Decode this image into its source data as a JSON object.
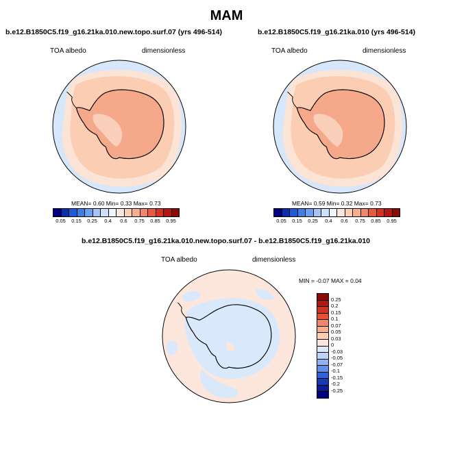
{
  "title": "MAM",
  "panels": [
    {
      "title": "b.e12.B1850C5.f19_g16.21ka.010.new.topo.surf.07 (yrs 496-514)",
      "left_label": "TOA albedo",
      "right_label": "dimensionless",
      "stats": "MEAN=  0.60  Min=  0.33  Max=  0.73"
    },
    {
      "title": "b.e12.B1850C5.f19_g16.21ka.010 (yrs 496-514)",
      "left_label": "TOA albedo",
      "right_label": "dimensionless",
      "stats": "MEAN=  0.59  Min=  0.32  Max=  0.73"
    }
  ],
  "colorbar_top": {
    "labels": [
      "0.05",
      "0.15",
      "0.25",
      "0.4",
      "0.6",
      "0.75",
      "0.85",
      "0.95"
    ],
    "colors": [
      "#00007f",
      "#0a2fa8",
      "#1c5ad6",
      "#3a7ee6",
      "#6aa0f0",
      "#a3c4f5",
      "#cfe0fa",
      "#eef5fd",
      "#fde6dc",
      "#fbcfb6",
      "#f8ad8c",
      "#f2866a",
      "#e85a3d",
      "#d13420",
      "#b01810",
      "#8c0a05"
    ]
  },
  "diff_panel": {
    "title": "b.e12.B1850C5.f19_g16.21ka.010.new.topo.surf.07 - b.e12.B1850C5.f19_g16.21ka.010",
    "left_label": "TOA albedo",
    "right_label": "dimensionless",
    "stats": "MIN =  -0.07 MAX =  0.04"
  },
  "colorbar_diff": {
    "labels": [
      "0.25",
      "0.2",
      "0.15",
      "0.1",
      "0.07",
      "0.05",
      "0.03",
      "0",
      "-0.03",
      "-0.05",
      "-0.07",
      "-0.1",
      "-0.15",
      "-0.2",
      "-0.25"
    ],
    "colors": [
      "#8c0a05",
      "#b01810",
      "#d13420",
      "#e8502f",
      "#f2866a",
      "#f8ad8c",
      "#fbcfb6",
      "#fde6dc",
      "#dbe9fb",
      "#bcd5f7",
      "#8fb4f0",
      "#5f8fe6",
      "#2f62d9",
      "#1538b4",
      "#0a1d92",
      "#00007f"
    ]
  },
  "map_colors": {
    "ocean_outer": "#d6e6fb",
    "ocean_mid": "#fbe4d6",
    "ice_shelf": "#fbcdb3",
    "continent": "#f6a98a",
    "plateau": "#fbd0bb",
    "diff_bg": "#fde6dc",
    "diff_neg": "#d9e9fb",
    "coast": "#000000"
  }
}
